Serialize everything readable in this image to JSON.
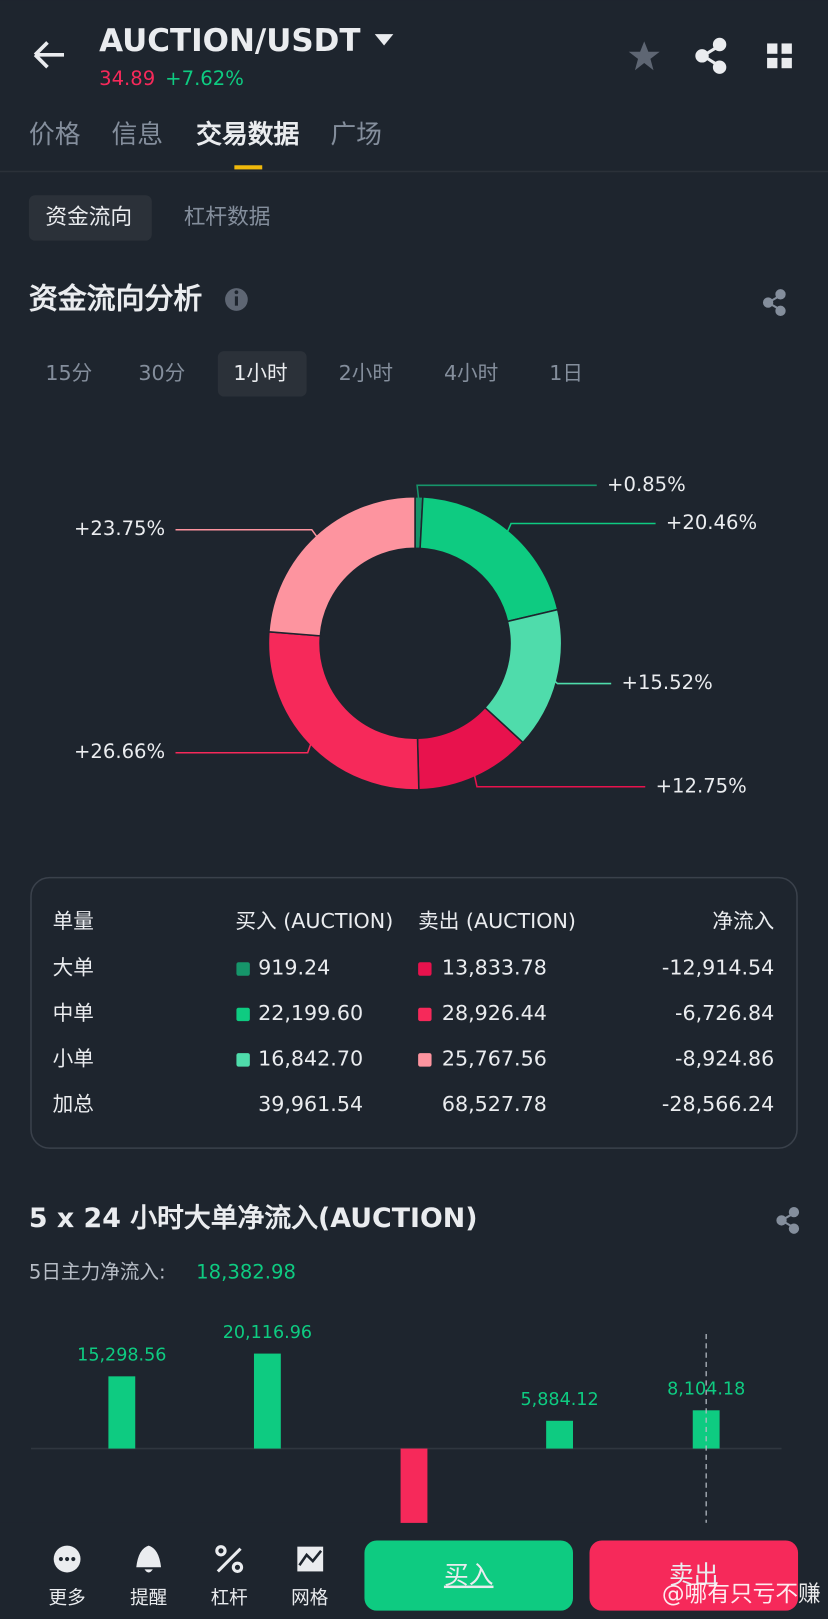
{
  "header": {
    "title": "AUCTION/USDT",
    "price": "34.89",
    "change": "+7.62%"
  },
  "tabs": [
    "价格",
    "信息",
    "交易数据",
    "广场"
  ],
  "subtabs": [
    "资金流向",
    "杠杆数据"
  ],
  "flow": {
    "title": "资金流向分析",
    "periods": [
      "15分",
      "30分",
      "1小时",
      "2小时",
      "4小时",
      "1日"
    ],
    "chart_data": {
      "type": "donut",
      "values": [
        0.85,
        20.46,
        15.52,
        12.75,
        26.66,
        23.75
      ],
      "value_labels": [
        "+0.85%",
        "+20.46%",
        "+15.52%",
        "+12.75%",
        "+26.66%",
        "+23.75%"
      ],
      "colors": [
        "#16956a",
        "#0ecb81",
        "#4fdcab",
        "#e8124d",
        "#f6295a",
        "#fd949f"
      ]
    }
  },
  "table": {
    "header": [
      "单量",
      "买入 (AUCTION)",
      "卖出 (AUCTION)",
      "净流入"
    ],
    "rows": [
      [
        "大单",
        "919.24",
        "13,833.78",
        "-12,914.54"
      ],
      [
        "中单",
        "22,199.60",
        "28,926.44",
        "-6,726.84"
      ],
      [
        "小单",
        "16,842.70",
        "25,767.56",
        "-8,924.86"
      ],
      [
        "加总",
        "39,961.54",
        "68,527.78",
        "-28,566.24"
      ]
    ]
  },
  "netflow": {
    "title": "5 x 24 小时大单净流入(AUCTION)",
    "summary_label": "5日主力净流入:",
    "summary_value": "18,382.98",
    "chart_data": {
      "type": "bar",
      "values": [
        15298.56,
        20116.96,
        -31020.84,
        5884.12,
        8104.18
      ],
      "value_labels": [
        "15,298.56",
        "20,116.96",
        null,
        "5,884.12",
        "8,104.18"
      ],
      "up_color": "#0ecb81",
      "down_color": "#f6295a"
    }
  },
  "bottom_nav": [
    "更多",
    "提醒",
    "杠杆",
    "网格"
  ],
  "buttons": {
    "buy": "买入",
    "sell": "卖出"
  },
  "watermark": "@哪有只亏不赚"
}
